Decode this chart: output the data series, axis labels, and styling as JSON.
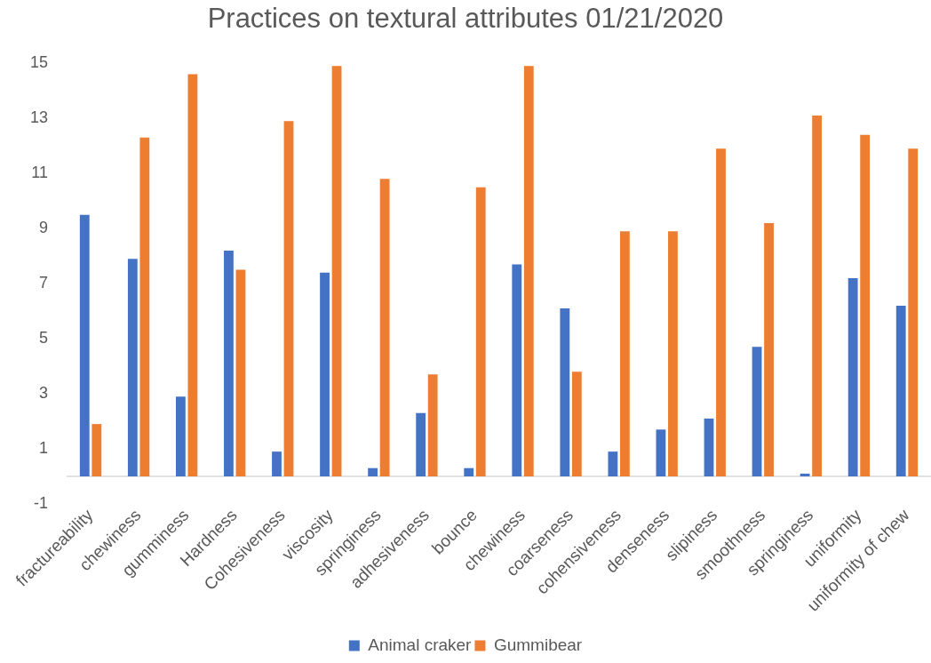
{
  "chart_data": {
    "type": "bar",
    "title": "Practices on textural attributes 01/21/2020",
    "categories": [
      "fractureability",
      "chewiness",
      "gumminess",
      "Hardness",
      "Cohesiveness",
      "viscosity",
      "springiness",
      "adhesiveness",
      "bounce",
      "chewiness",
      "coarseness",
      "cohensiveness",
      "denseness",
      "slipiness",
      "smoothness",
      "springiness",
      "uniformity",
      "uniformity of chew"
    ],
    "series": [
      {
        "name": "Animal craker",
        "color": "#4472c4",
        "values": [
          9.5,
          7.9,
          2.9,
          8.2,
          0.9,
          7.4,
          0.3,
          2.3,
          0.3,
          7.7,
          6.1,
          0.9,
          1.7,
          2.1,
          4.7,
          0.1,
          7.2,
          6.2
        ]
      },
      {
        "name": "Gummibear",
        "color": "#ed7d31",
        "values": [
          1.9,
          12.3,
          14.6,
          7.5,
          12.9,
          14.9,
          10.8,
          3.7,
          10.5,
          14.9,
          3.8,
          8.9,
          8.9,
          11.9,
          9.2,
          13.1,
          12.4,
          11.9
        ]
      }
    ],
    "ylim": [
      -1,
      15
    ],
    "yticks": [
      -1,
      1,
      3,
      5,
      7,
      9,
      11,
      13,
      15
    ],
    "legend": "bottom"
  }
}
